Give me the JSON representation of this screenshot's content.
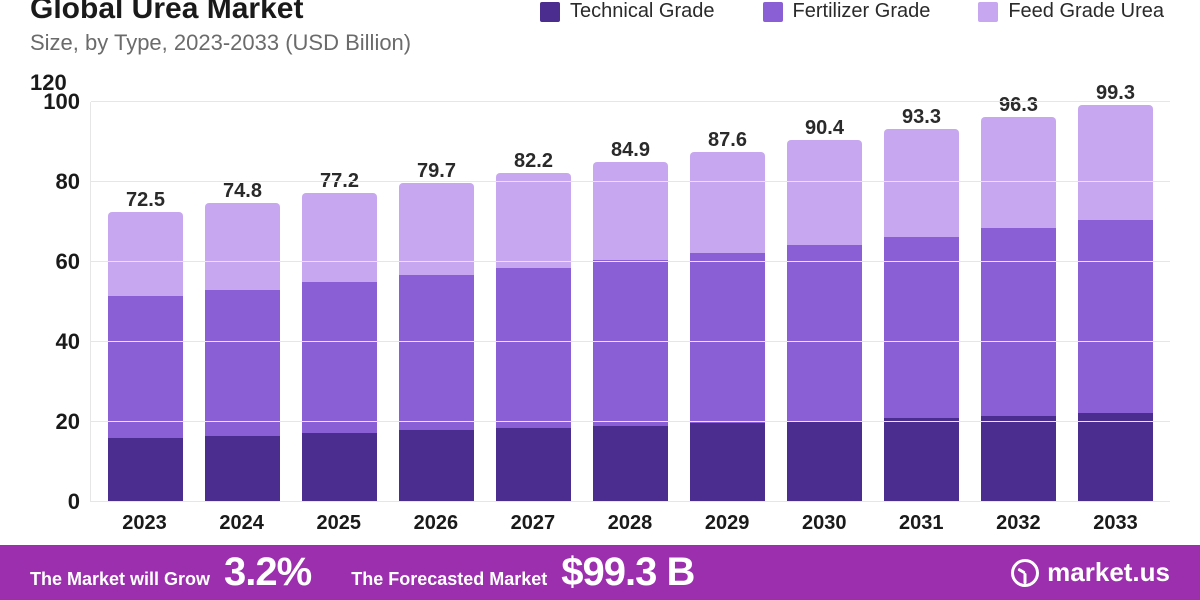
{
  "chart": {
    "type": "stacked-bar",
    "title": "Global Urea Market",
    "subtitle": "Size, by Type, 2023-2033 (USD Billion)",
    "background_color": "#ffffff",
    "grid_color": "#e6e6e6",
    "axis_font_color": "#1a1a1a",
    "axis_fontsize": 22,
    "label_fontsize": 20,
    "title_fontsize": 30,
    "subtitle_fontsize": 22,
    "subtitle_color": "#6b6b6b",
    "ylim": [
      0,
      120
    ],
    "ygrid_max": 100,
    "ytick_step": 20,
    "yticks": [
      0,
      20,
      40,
      60,
      80,
      100
    ],
    "ytop_label": "120",
    "bar_width": 0.78,
    "categories": [
      "2023",
      "2024",
      "2025",
      "2026",
      "2027",
      "2028",
      "2029",
      "2030",
      "2031",
      "2032",
      "2033"
    ],
    "series": [
      {
        "name": "Technical Grade",
        "color": "#4a2d8f"
      },
      {
        "name": "Fertilizer Grade",
        "color": "#8a5fd6"
      },
      {
        "name": "Feed Grade Urea",
        "color": "#c7a8f0"
      }
    ],
    "totals": [
      72.5,
      74.8,
      77.2,
      79.7,
      82.2,
      84.9,
      87.6,
      90.4,
      93.3,
      96.3,
      99.3
    ],
    "stacks": [
      [
        16.0,
        35.5,
        21.0
      ],
      [
        16.6,
        36.4,
        21.8
      ],
      [
        17.3,
        37.7,
        22.2
      ],
      [
        17.9,
        38.8,
        23.0
      ],
      [
        18.4,
        40.1,
        23.7
      ],
      [
        19.0,
        41.4,
        24.5
      ],
      [
        19.7,
        42.6,
        25.3
      ],
      [
        20.3,
        44.0,
        26.1
      ],
      [
        20.9,
        45.4,
        27.0
      ],
      [
        21.5,
        47.0,
        27.8
      ],
      [
        22.2,
        48.4,
        28.7
      ]
    ]
  },
  "footer": {
    "bg_color": "#9b2fae",
    "text_color": "#ffffff",
    "grow_label": "The Market will Grow",
    "grow_value": "3.2%",
    "forecast_label": "The Forecasted Market",
    "forecast_value": "$99.3 B",
    "brand": "market.us"
  }
}
